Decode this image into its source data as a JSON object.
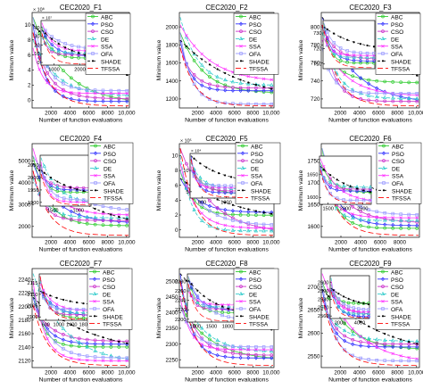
{
  "legend_labels": [
    "ABC",
    "PSO",
    "CSO",
    "DE",
    "SSA",
    "OFA",
    "SHADE",
    "TFSSA"
  ],
  "colors": {
    "ABC": "#33cc33",
    "PSO": "#3333ff",
    "CSO": "#cc33cc",
    "DE": "#33cccc",
    "SSA": "#ff33ff",
    "OFA": "#9999ff",
    "SHADE": "#000000",
    "TFSSA": "#ff0000"
  },
  "chart_data": [
    {
      "type": "line",
      "title": "CEC2020_F1",
      "xlabel": "Number of function evaluations",
      "ylabel": "Minimum value",
      "xlim": [
        0,
        10000
      ],
      "xticks": [
        "2000",
        "4000",
        "6000",
        "8000",
        "10,000"
      ],
      "ylim": [
        0,
        11
      ],
      "yticks": [
        "0",
        "2",
        "4",
        "6",
        "8",
        "10"
      ],
      "yexp": "× 10⁸",
      "inset": {
        "xlim": [
          500,
          2600
        ],
        "xticks": [
          "1000",
          "2000"
        ],
        "ylim": [
          0,
          45
        ],
        "yticks": [
          "0",
          "10",
          "20",
          "30",
          "40"
        ],
        "yexp": "× 10⁷"
      }
    },
    {
      "type": "line",
      "title": "CEC2020_F2",
      "xlabel": "Number of function evaluations",
      "ylabel": "Minimum value",
      "xlim": [
        0,
        10000
      ],
      "xticks": [
        "2000",
        "4000",
        "6000",
        "8000",
        "10,000"
      ],
      "ylim": [
        1100,
        2100
      ],
      "yticks": [
        "1200",
        "1400",
        "1600",
        "1800",
        "2000"
      ],
      "yexp": ""
    },
    {
      "type": "line",
      "title": "CEC2020_F3",
      "xlabel": "Number of function evaluations",
      "ylabel": "Minimum value",
      "xlim": [
        0,
        10000
      ],
      "xticks": [
        "2000",
        "4000",
        "6000",
        "8000",
        "10,000"
      ],
      "ylim": [
        710,
        810
      ],
      "yticks": [
        "720",
        "740",
        "760",
        "780",
        "800"
      ],
      "yexp": "",
      "inset": {
        "xlim": [
          1000,
          3000
        ],
        "xticks": [],
        "ylim": [
          710,
          740
        ],
        "yticks": [
          "710",
          "720",
          "730"
        ],
        "yexp": ""
      }
    },
    {
      "type": "line",
      "title": "CEC2020_F4",
      "xlabel": "Number of function evaluations",
      "ylabel": "Minimum value",
      "xlim": [
        0,
        10000
      ],
      "xticks": [
        "2000",
        "4000",
        "6000",
        "8000",
        "10,000"
      ],
      "ylim": [
        1880,
        5800
      ],
      "yticks": [
        "2000",
        "3000",
        "4000",
        "5000"
      ],
      "yexp": "",
      "inset": {
        "xlim": [
          1200,
          3000
        ],
        "xticks": [
          "1500",
          "1000"
        ],
        "ylim": [
          1880,
          2080
        ],
        "yticks": [
          "1900",
          "1950",
          "2000",
          "2050"
        ],
        "yexp": ""
      }
    },
    {
      "type": "line",
      "title": "CEC2020_F5",
      "xlabel": "Number of function evaluations",
      "ylabel": "Minimum value",
      "xlim": [
        0,
        10000
      ],
      "xticks": [
        "2000",
        "4000",
        "6000",
        "8000",
        "10,000"
      ],
      "ylim": [
        0,
        11
      ],
      "yticks": [
        "0",
        "2",
        "4",
        "6",
        "8",
        "10"
      ],
      "yexp": "× 10⁵",
      "inset": {
        "xlim": [
          600,
          1600
        ],
        "xticks": [
          "800",
          "1000"
        ],
        "ylim": [
          0,
          12
        ],
        "yticks": [
          "5",
          "10"
        ],
        "yexp": "× 10⁴"
      }
    },
    {
      "type": "line",
      "title": "CEC2020_F6",
      "xlabel": "Number of function evaluations",
      "ylabel": "Minimum value",
      "xlim": [
        0,
        10000
      ],
      "xticks": [
        "2000",
        "4000",
        "6000",
        "8000"
      ],
      "ylim": [
        1590,
        1770
      ],
      "yticks": [
        "1600",
        "1650",
        "1700",
        "1750"
      ],
      "yexp": "",
      "inset": {
        "xlim": [
          1200,
          2800
        ],
        "xticks": [
          "1500",
          "2000",
          "2500"
        ],
        "ylim": [
          1600,
          1660
        ],
        "yticks": [
          "1600",
          "1650"
        ],
        "yexp": ""
      }
    },
    {
      "type": "line",
      "title": "CEC2020_F7",
      "xlabel": "Number of function evaluations",
      "ylabel": "Minimum value",
      "xlim": [
        0,
        10000
      ],
      "xticks": [
        "2000",
        "4000",
        "6000",
        "8000",
        "10,000"
      ],
      "ylim": [
        2110,
        2245
      ],
      "yticks": [
        "2120",
        "2140",
        "2160",
        "2180",
        "2200",
        "2220",
        "2240"
      ],
      "yexp": "",
      "inset": {
        "xlim": [
          500,
          1900
        ],
        "xticks": [
          "600",
          "1000",
          "1400",
          "1800"
        ],
        "ylim": [
          2100,
          2120
        ],
        "yticks": [
          "2100",
          "2105",
          "2110",
          "2115"
        ],
        "yexp": ""
      }
    },
    {
      "type": "line",
      "title": "CEC2020_F8",
      "xlabel": "Number of function evaluations",
      "ylabel": "Minimum value",
      "xlim": [
        0,
        10000
      ],
      "xticks": [
        "2000",
        "4000",
        "6000",
        "8000",
        "10,000"
      ],
      "ylim": [
        2235,
        2510
      ],
      "yticks": [
        "2250",
        "2300",
        "2350",
        "2400",
        "2450",
        "2500"
      ],
      "yexp": "",
      "inset": {
        "xlim": [
          900,
          1900
        ],
        "xticks": [
          "1000",
          "1500",
          "1800"
        ],
        "ylim": [
          2200,
          2285
        ],
        "yticks": [
          "2200",
          "2220",
          "2240",
          "2260",
          "2280"
        ],
        "yexp": ""
      }
    },
    {
      "type": "line",
      "title": "CEC2020_F9",
      "xlabel": "Number of function evaluations",
      "ylabel": "Minimum value",
      "xlim": [
        0,
        10000
      ],
      "xticks": [
        "2000",
        "4000",
        "6000",
        "8000",
        "10,000"
      ],
      "ylim": [
        2530,
        2720
      ],
      "yticks": [
        "2550",
        "2600",
        "2650",
        "2700"
      ],
      "yexp": "",
      "inset": {
        "xlim": [
          1000,
          5000
        ],
        "xticks": [
          "2000",
          "4000"
        ],
        "ylim": [
          2555,
          2605
        ],
        "yticks": [
          "2560",
          "2570",
          "2580",
          "2590",
          "2600"
        ],
        "yexp": ""
      }
    }
  ]
}
